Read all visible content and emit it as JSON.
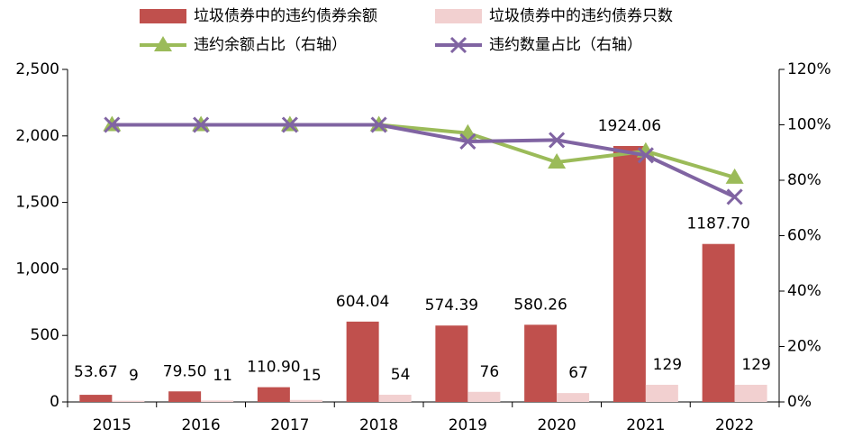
{
  "chart_data": {
    "type": "bar_line",
    "categories": [
      "2015",
      "2016",
      "2017",
      "2018",
      "2019",
      "2020",
      "2021",
      "2022"
    ],
    "series": [
      {
        "name": "垃圾债券中的违约债券余额",
        "type": "bar",
        "color": "#c0504d",
        "values": [
          53.67,
          79.5,
          110.9,
          604.04,
          574.39,
          580.26,
          1924.06,
          1187.7
        ],
        "value_labels": [
          "53.67",
          "79.50",
          "110.90",
          "604.04",
          "574.39",
          "580.26",
          "1924.06",
          "1187.70"
        ]
      },
      {
        "name": "垃圾债券中的违约债券只数",
        "type": "bar",
        "color": "#f2d0d0",
        "values": [
          9,
          11,
          15,
          54,
          76,
          67,
          129,
          129
        ]
      },
      {
        "name": "违约余额占比（右轴）",
        "type": "line",
        "axis": "y2",
        "marker": "triangle",
        "color": "#9bbb59",
        "values": [
          100,
          100,
          100,
          100,
          97,
          86.5,
          90.5,
          81
        ]
      },
      {
        "name": "违约数量占比（右轴）",
        "type": "line",
        "axis": "y2",
        "marker": "x",
        "color": "#8064a2",
        "values": [
          100,
          100,
          100,
          100,
          94,
          94.5,
          89,
          74
        ]
      }
    ],
    "ylim": [
      0,
      2500
    ],
    "yticks": [
      0,
      500,
      {
        "value": 1000,
        "label": "1,000"
      },
      {
        "value": 1500,
        "label": "1,500"
      },
      {
        "value": 2000,
        "label": "2,000"
      },
      {
        "value": 2500,
        "label": "2,500"
      }
    ],
    "y2lim": [
      0,
      120
    ],
    "y2ticks": [
      {
        "value": 0,
        "label": "0%"
      },
      {
        "value": 20,
        "label": "20%"
      },
      {
        "value": 40,
        "label": "40%"
      },
      {
        "value": 60,
        "label": "60%"
      },
      {
        "value": 80,
        "label": "80%"
      },
      {
        "value": 100,
        "label": "100%"
      },
      {
        "value": 120,
        "label": "120%"
      }
    ],
    "grid": false
  }
}
